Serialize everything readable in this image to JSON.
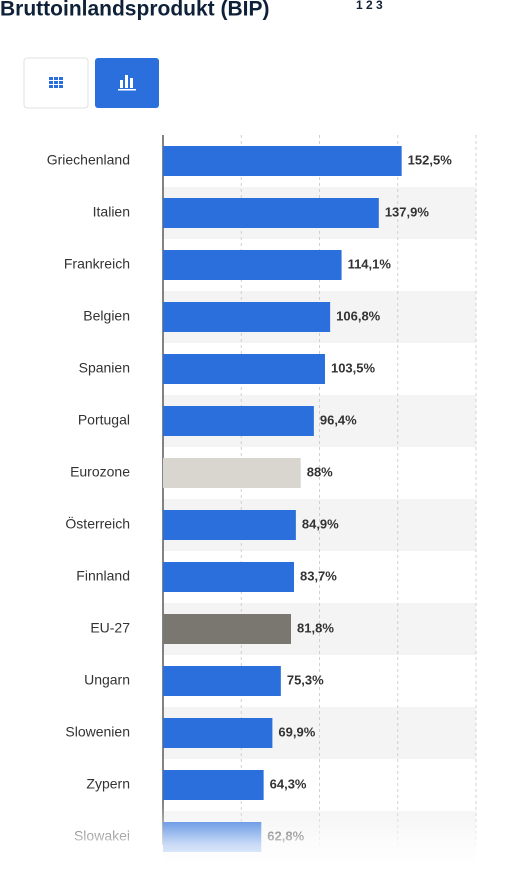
{
  "chart_data": {
    "type": "hbar",
    "title": "Bruttoinlandsprodukt (BIP)",
    "title_footnotes": "1 2 3",
    "categories": [
      "Griechenland",
      "Italien",
      "Frankreich",
      "Belgien",
      "Spanien",
      "Portugal",
      "Eurozone",
      "Österreich",
      "Finnland",
      "EU-27",
      "Ungarn",
      "Slowenien",
      "Zypern",
      "Slowakei"
    ],
    "values": [
      152.5,
      137.9,
      114.1,
      106.8,
      103.5,
      96.4,
      88,
      84.9,
      83.7,
      81.8,
      75.3,
      69.9,
      64.3,
      62.8
    ],
    "value_labels": [
      "152,5%",
      "137,9%",
      "114,1%",
      "106,8%",
      "103,5%",
      "96,4%",
      "88%",
      "84,9%",
      "83,7%",
      "81,8%",
      "75,3%",
      "69,9%",
      "64,3%",
      "62,8%"
    ],
    "colors": [
      "#2a6fdb",
      "#2a6fdb",
      "#2a6fdb",
      "#2a6fdb",
      "#2a6fdb",
      "#2a6fdb",
      "#d8d6cf",
      "#2a6fdb",
      "#2a6fdb",
      "#7a7770",
      "#2a6fdb",
      "#2a6fdb",
      "#2a6fdb",
      "#2a6fdb"
    ],
    "xlim": [
      0,
      200
    ],
    "xticks": [
      50,
      100,
      150,
      200
    ],
    "grid": true
  }
}
